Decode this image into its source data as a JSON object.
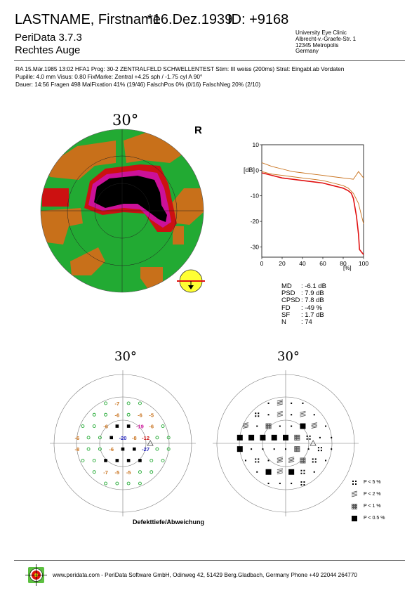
{
  "header": {
    "patient": "LASTNAME, Firstname",
    "dob": "*16.Dez.1939",
    "id": "ID: +9168",
    "software": "PeriData  3.7.3",
    "eye": "Rechtes Auge",
    "clinic": [
      "University Eye Clinic",
      "Albrecht-v.-Graefe-Str. 1",
      "12345 Metropolis",
      "Germany"
    ]
  },
  "exam": {
    "line1": "RA   15.Mär.1985   13:02   HFA1    Prog: 30-2 ZENTRALFELD SCHWELLENTEST  Stim: III weiss (200ms)    Strat: Eingabl.ab Vordaten",
    "line2": "Pupille:   4.0 mm   Visus: 0.80   FixMarke: Zentral    +4.25 sph / -1.75 cyl A 90°",
    "line3": "Dauer: 14:56   Fragen 498   MalFixation 41% (19/46)       FalschPos 0% (0/16)       FalschNeg 20% (2/10)"
  },
  "field_map": {
    "angle_label": "30°",
    "eye_letter": "R",
    "colors": {
      "normal": "#22aa33",
      "mild": "#c8701a",
      "moderate": "#cc1111",
      "severe": "#cc1199",
      "absolute": "#000000",
      "fixation": "#ffff33"
    }
  },
  "bebie_curve": {
    "ylabel": "[dB]",
    "xlabel": "[%]",
    "x_ticks": [
      "0",
      "20",
      "40",
      "60",
      "80",
      "100"
    ],
    "y_ticks": [
      "10",
      "0",
      "-10",
      "-20",
      "-30"
    ],
    "xlim": [
      0,
      100
    ],
    "ylim": [
      -34,
      10
    ],
    "patient_curve": [
      [
        0,
        -1
      ],
      [
        10,
        -2
      ],
      [
        20,
        -3
      ],
      [
        30,
        -3.5
      ],
      [
        40,
        -4
      ],
      [
        50,
        -4.5
      ],
      [
        60,
        -5
      ],
      [
        65,
        -5.5
      ],
      [
        70,
        -6
      ],
      [
        75,
        -6.5
      ],
      [
        80,
        -7
      ],
      [
        85,
        -8
      ],
      [
        88,
        -9
      ],
      [
        90,
        -11
      ],
      [
        93,
        -18
      ],
      [
        95,
        -25
      ],
      [
        96,
        -31
      ],
      [
        98,
        -32
      ],
      [
        100,
        -33
      ]
    ],
    "upper_limit": [
      [
        0,
        3
      ],
      [
        10,
        1.5
      ],
      [
        20,
        0.5
      ],
      [
        30,
        -0.5
      ],
      [
        40,
        -1
      ],
      [
        50,
        -1.5
      ],
      [
        60,
        -2
      ],
      [
        70,
        -2.5
      ],
      [
        80,
        -3
      ],
      [
        90,
        -3.5
      ],
      [
        95,
        -0.5
      ],
      [
        100,
        -3
      ]
    ],
    "lower_limit": [
      [
        0,
        -0.5
      ],
      [
        10,
        -1.5
      ],
      [
        20,
        -2
      ],
      [
        30,
        -2.5
      ],
      [
        40,
        -3
      ],
      [
        50,
        -3.5
      ],
      [
        60,
        -4
      ],
      [
        70,
        -5
      ],
      [
        80,
        -6
      ],
      [
        85,
        -7
      ],
      [
        90,
        -9
      ],
      [
        95,
        -13
      ],
      [
        100,
        -21
      ]
    ]
  },
  "indices": [
    {
      "name": "MD",
      "value": ":  -6.1 dB"
    },
    {
      "name": "PSD",
      "value": ":  7.9 dB"
    },
    {
      "name": "CPSD",
      "value": ":  7.8 dB"
    },
    {
      "name": "FD",
      "value": ":  -49 %"
    },
    {
      "name": "SF",
      "value": ":  1.7 dB"
    },
    {
      "name": "N",
      "value": ":  74"
    }
  ],
  "deviation_map": {
    "angle_label": "30°",
    "caption": "Defekttiefe/Abweichung",
    "values": [
      {
        "t": "-7",
        "x": -1,
        "y": -4,
        "c": "#c8701a"
      },
      {
        "t": "-8",
        "x": -5,
        "y": -3,
        "c": "#c8701a"
      },
      {
        "t": "-6",
        "x": -1,
        "y": -3,
        "c": "#c8701a"
      },
      {
        "t": "-6",
        "x": 1,
        "y": -3,
        "c": "#c8701a"
      },
      {
        "t": "-5",
        "x": 2,
        "y": -3,
        "c": "#c8701a"
      },
      {
        "t": "-9",
        "x": -6,
        "y": -2,
        "c": "#c8701a"
      },
      {
        "t": "-9",
        "x": -5,
        "y": -2,
        "c": "#c8701a"
      },
      {
        "t": "-6",
        "x": -2,
        "y": -2,
        "c": "#c8701a"
      },
      {
        "t": "-19",
        "x": 1,
        "y": -2,
        "c": "#cc1199"
      },
      {
        "t": "-6",
        "x": 2,
        "y": -2,
        "c": "#c8701a"
      },
      {
        "t": "-12",
        "x": -6,
        "y": -1,
        "c": "#cc1111"
      },
      {
        "t": "-12",
        "x": -5,
        "y": -1,
        "c": "#cc1111"
      },
      {
        "t": "-6",
        "x": -4,
        "y": -1,
        "c": "#c8701a"
      },
      {
        "t": "-20",
        "x": 0,
        "y": -1,
        "c": "#2222bb"
      },
      {
        "t": "-8",
        "x": 1,
        "y": -1,
        "c": "#c8701a"
      },
      {
        "t": "-12",
        "x": 2,
        "y": -1,
        "c": "#cc1111"
      },
      {
        "t": "-27",
        "x": 2,
        "y": 0,
        "c": "#2222bb"
      },
      {
        "t": "-8",
        "x": -4,
        "y": 0,
        "c": "#c8701a"
      },
      {
        "t": "-6",
        "x": -1,
        "y": 0,
        "c": "#c8701a"
      },
      {
        "t": "-7",
        "x": -2,
        "y": 2,
        "c": "#c8701a"
      },
      {
        "t": "-5",
        "x": -1,
        "y": 2,
        "c": "#c8701a"
      },
      {
        "t": "-5",
        "x": 0,
        "y": 2,
        "c": "#c8701a"
      },
      {
        "t": "-6",
        "x": 3,
        "y": 2,
        "c": "#c8701a"
      },
      {
        "t": "-7",
        "x": -4,
        "y": 3,
        "c": "#c8701a"
      },
      {
        "t": "-5",
        "x": 1,
        "y": 4,
        "c": "#c8701a"
      }
    ]
  },
  "probability_map": {
    "angle_label": "30°",
    "legend": [
      {
        "label": "P <   5 %",
        "sym": "p5"
      },
      {
        "label": "P <   2 %",
        "sym": "p2"
      },
      {
        "label": "P <   1 %",
        "sym": "p1"
      },
      {
        "label": "P < 0.5 %",
        "sym": "p05"
      }
    ]
  },
  "footer": {
    "text": "www.peridata.com - PeriData Software GmbH, Odinweg 42, 51429 Berg.Gladbach, Germany  Phone +49 22044 264770"
  }
}
